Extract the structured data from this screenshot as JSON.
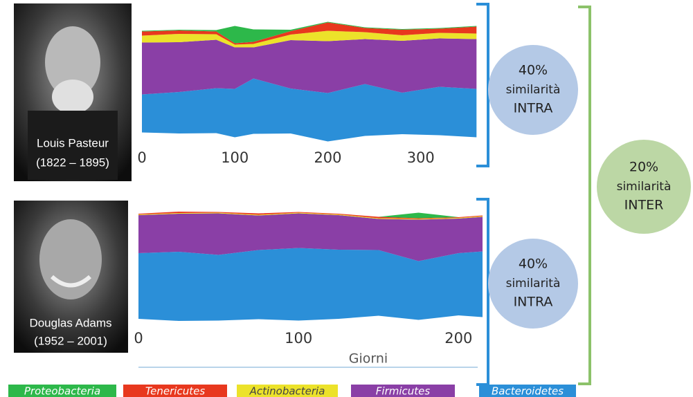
{
  "people": [
    {
      "name": "Louis Pasteur",
      "dates": "(1822 – 1895)"
    },
    {
      "name": "Douglas Adams",
      "dates": "(1952 – 2001)"
    }
  ],
  "similarity": [
    {
      "percent": "40%",
      "word": "similarità",
      "kind": "INTRA"
    },
    {
      "percent": "40%",
      "word": "similarità",
      "kind": "INTRA"
    },
    {
      "percent": "20%",
      "word": "similarità",
      "kind": "INTER"
    }
  ],
  "chart_data": [
    {
      "type": "stream",
      "xlim": [
        0,
        365
      ],
      "xticks": [
        0,
        100,
        200,
        300
      ],
      "x": [
        0,
        40,
        80,
        100,
        120,
        160,
        200,
        240,
        280,
        320,
        360
      ],
      "series": [
        {
          "name": "Bacteroidetes",
          "color": "#2b8fd8",
          "values": [
            55,
            60,
            65,
            70,
            80,
            65,
            70,
            75,
            60,
            70,
            70
          ]
        },
        {
          "name": "Firmicutes",
          "color": "#8a3fa6",
          "values": [
            75,
            72,
            70,
            60,
            45,
            70,
            75,
            65,
            75,
            70,
            72
          ]
        },
        {
          "name": "Actinobacteria",
          "color": "#ece22a",
          "values": [
            10,
            12,
            8,
            4,
            5,
            8,
            15,
            10,
            8,
            8,
            8
          ]
        },
        {
          "name": "Tenericutes",
          "color": "#e8381e",
          "values": [
            6,
            5,
            4,
            2,
            3,
            5,
            12,
            6,
            8,
            6,
            10
          ]
        },
        {
          "name": "Proteobacteria",
          "color": "#2db84a",
          "values": [
            1,
            1,
            2,
            25,
            18,
            2,
            1,
            1,
            1,
            1,
            1
          ]
        }
      ]
    },
    {
      "type": "stream",
      "xlim": [
        0,
        215
      ],
      "xticks": [
        0,
        100,
        200
      ],
      "xlabel": "Giorni",
      "x": [
        0,
        25,
        50,
        75,
        100,
        125,
        150,
        175,
        200,
        215
      ],
      "series": [
        {
          "color": "#2b8fd8",
          "values": [
            95,
            100,
            95,
            100,
            105,
            100,
            95,
            85,
            90,
            95
          ]
        },
        {
          "color": "#8a3fa6",
          "values": [
            55,
            55,
            60,
            50,
            50,
            50,
            45,
            60,
            50,
            50
          ]
        },
        {
          "color": "#ece22a",
          "values": [
            1,
            1,
            1,
            1,
            1,
            1,
            1,
            1,
            1,
            1
          ]
        },
        {
          "color": "#e8381e",
          "values": [
            1,
            2,
            1,
            2,
            1,
            1,
            2,
            1,
            1,
            1
          ]
        },
        {
          "color": "#2db84a",
          "values": [
            0,
            0,
            0,
            0,
            0,
            0,
            0,
            8,
            0,
            0
          ]
        }
      ]
    }
  ]
}
